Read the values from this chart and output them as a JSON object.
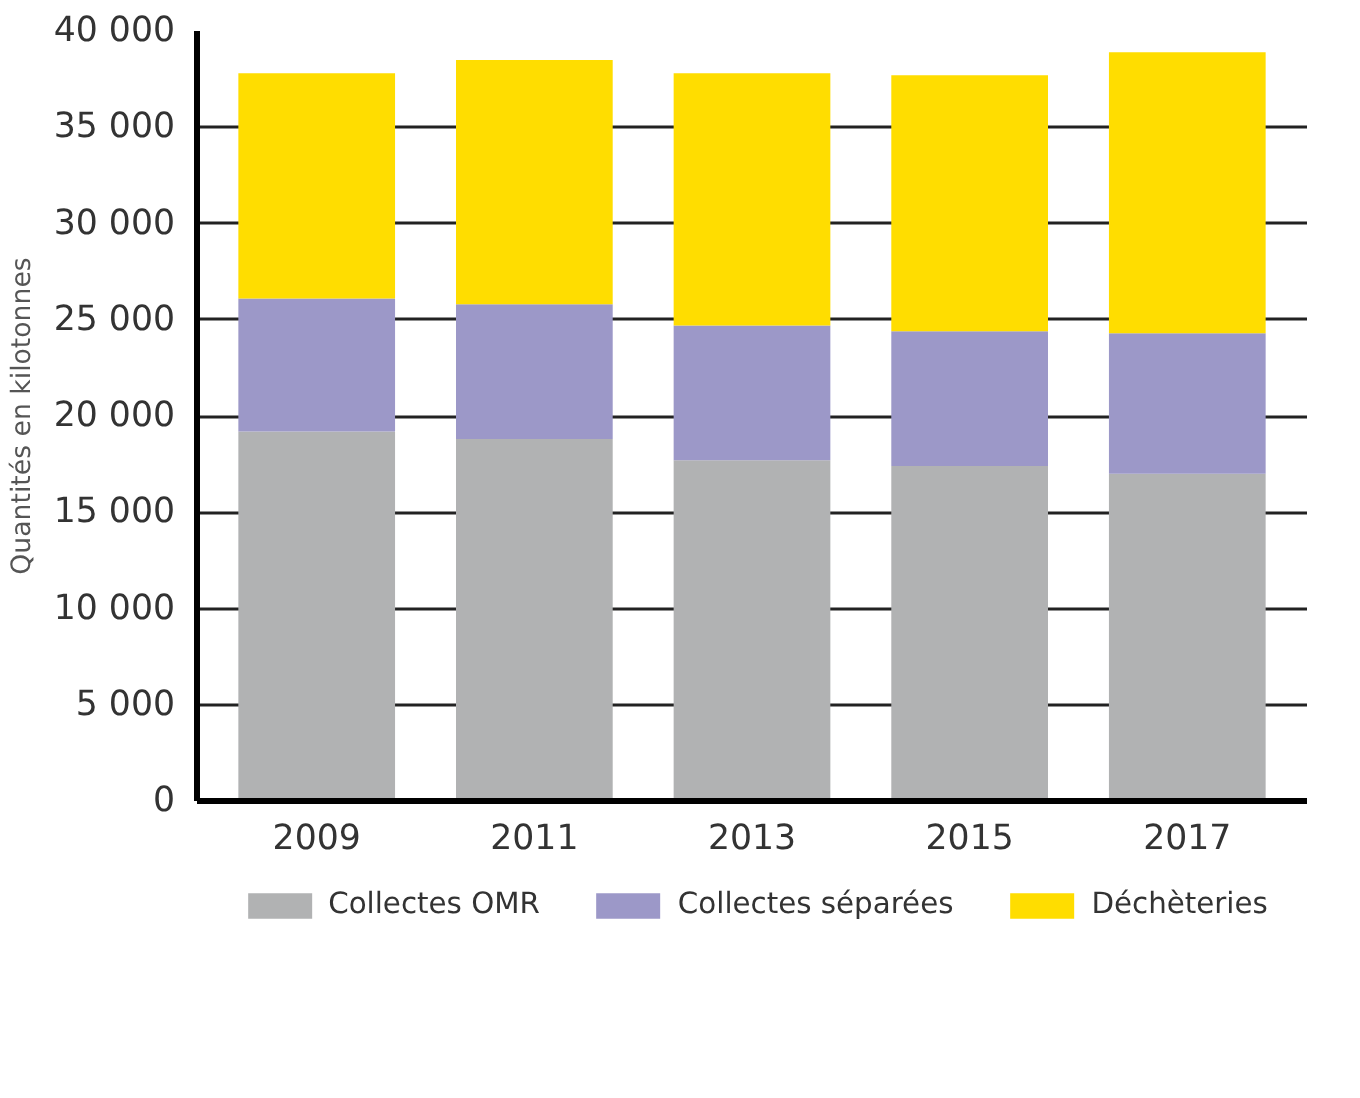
{
  "chart_data": {
    "type": "bar",
    "stacked": true,
    "ylabel": "Quantités en kilotonnes",
    "categories": [
      "2009",
      "2011",
      "2013",
      "2015",
      "2017"
    ],
    "series": [
      {
        "name": "Collectes OMR",
        "color": "#b1b2b3",
        "values": [
          19200,
          18800,
          17700,
          17400,
          17000
        ]
      },
      {
        "name": "Collectes séparées",
        "color": "#9c98c8",
        "values": [
          6900,
          7000,
          7000,
          7000,
          7300
        ]
      },
      {
        "name": "Déchèteries",
        "color": "#ffdd00",
        "values": [
          11700,
          12700,
          13100,
          13300,
          14600
        ]
      }
    ],
    "ylim": [
      0,
      40000
    ],
    "yticks": [
      {
        "value": 0,
        "label": "0"
      },
      {
        "value": 5000,
        "label": "5 000"
      },
      {
        "value": 10000,
        "label": "10 000"
      },
      {
        "value": 15000,
        "label": "15 000"
      },
      {
        "value": 20000,
        "label": "20 000"
      },
      {
        "value": 25000,
        "label": "25 000"
      },
      {
        "value": 30000,
        "label": "30 000"
      },
      {
        "value": 35000,
        "label": "35 000"
      },
      {
        "value": 40000,
        "label": "40 000"
      }
    ],
    "grid": "y",
    "legend": "bottom"
  }
}
